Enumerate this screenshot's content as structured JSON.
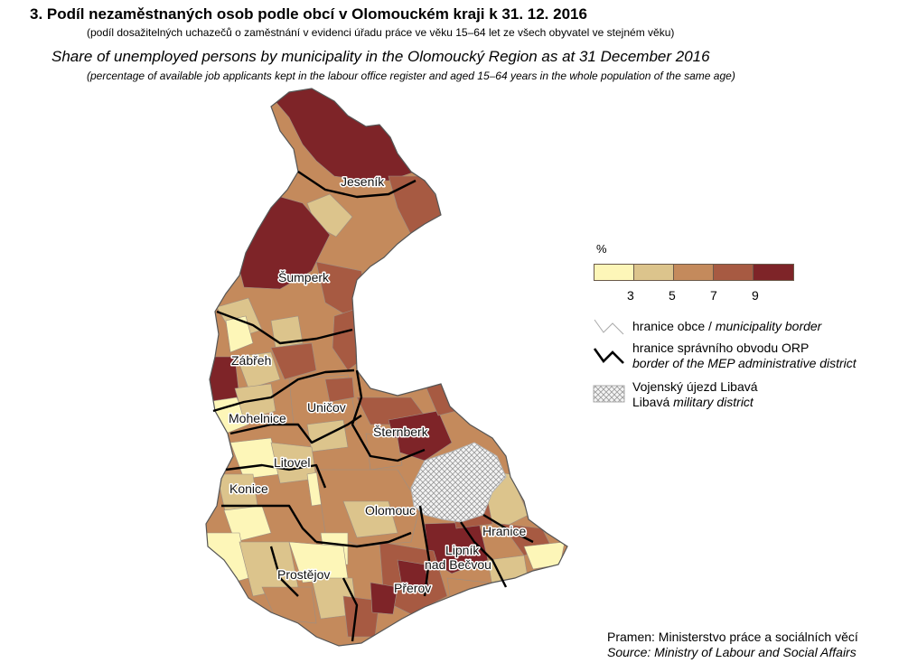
{
  "title": "3. Podíl nezaměstnaných osob podle obcí v Olomouckém kraji k 31. 12. 2016",
  "subtitle": "(podíl dosažitelných uchazečů o zaměstnání v evidenci úřadu práce ve věku 15–64 let ze všech obyvatel ve stejném věku)",
  "title_en": "Share of unemployed persons by municipality in the Olomoucký Region as at 31 December 2016",
  "subtitle_en": "(percentage of available job applicants kept in the labour office register and aged 15–64 years in the whole population of the same age)",
  "legend": {
    "unit": "%",
    "classes": [
      {
        "color": "#fdf6b8"
      },
      {
        "color": "#dcc48c"
      },
      {
        "color": "#c48a5c"
      },
      {
        "color": "#a75a42"
      },
      {
        "color": "#7e2428"
      }
    ],
    "breaks": [
      "3",
      "5",
      "7",
      "9"
    ],
    "municipality_border_cz": "hranice obce / ",
    "municipality_border_en": "municipality border",
    "orp_border_cz": "hranice správního obvodu ORP",
    "orp_border_en": "border of the MEP administrative district",
    "military_cz": "Vojenský újezd Libavá",
    "military_cz2": "Libavá ",
    "military_en": "military district"
  },
  "districts": [
    {
      "name": "Jeseník",
      "class": 4
    },
    {
      "name": "Šumperk",
      "class": 3
    },
    {
      "name": "Zábřeh",
      "class": 2
    },
    {
      "name": "Mohelnice",
      "class": 1
    },
    {
      "name": "Uničov",
      "class": 2
    },
    {
      "name": "Šternberk",
      "class": 3
    },
    {
      "name": "Litovel",
      "class": 1
    },
    {
      "name": "Konice",
      "class": 1
    },
    {
      "name": "Olomouc",
      "class": 2
    },
    {
      "name": "Hranice",
      "class": 2
    },
    {
      "name": "Lipník",
      "class": 3
    },
    {
      "name": "nad Bečvou",
      "class": 3
    },
    {
      "name": "Prostějov",
      "class": 1
    },
    {
      "name": "Přerov",
      "class": 3
    }
  ],
  "source_cz": "Pramen: Ministerstvo práce a sociálních věcí",
  "source_en": "Source: Ministry of Labour and Social Affairs"
}
